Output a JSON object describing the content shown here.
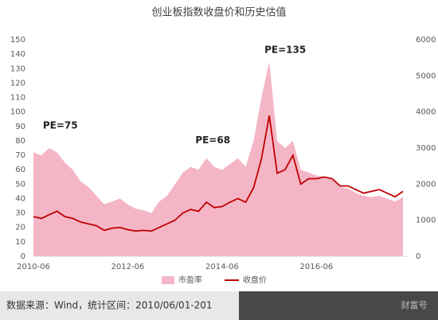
{
  "chart_data": {
    "type": "area-line",
    "title": "创业板指数收盘价和历史估值",
    "categories": [
      "2010-06",
      null,
      null,
      null,
      null,
      null,
      null,
      null,
      null,
      null,
      null,
      null,
      "2012-06",
      null,
      null,
      null,
      null,
      null,
      null,
      null,
      null,
      null,
      null,
      null,
      "2014-06",
      null,
      null,
      null,
      null,
      null,
      null,
      null,
      null,
      null,
      null,
      null,
      "2016-06",
      null,
      null,
      null,
      null,
      null,
      null,
      null,
      null,
      null,
      null,
      null
    ],
    "series": [
      {
        "name": "市盈率",
        "color": "#f4b6c6",
        "kind": "area",
        "values": [
          72,
          70,
          75,
          72,
          65,
          60,
          52,
          48,
          42,
          36,
          38,
          40,
          36,
          33,
          32,
          30,
          38,
          42,
          50,
          58,
          62,
          60,
          68,
          62,
          60,
          64,
          68,
          62,
          80,
          110,
          135,
          80,
          75,
          80,
          60,
          58,
          56,
          55,
          53,
          48,
          47,
          44,
          42,
          41,
          42,
          40,
          38,
          41
        ]
      },
      {
        "name": "收盘价",
        "color": "#c00000",
        "kind": "line",
        "axis": "y2",
        "values": [
          1100,
          1050,
          1150,
          1250,
          1100,
          1050,
          950,
          900,
          850,
          720,
          780,
          800,
          740,
          700,
          720,
          700,
          800,
          900,
          1000,
          1200,
          1300,
          1250,
          1500,
          1350,
          1380,
          1500,
          1600,
          1500,
          1900,
          2700,
          3900,
          2300,
          2400,
          2800,
          2000,
          2150,
          2150,
          2200,
          2150,
          1950,
          1950,
          1850,
          1750,
          1800,
          1850,
          1750,
          1650,
          1800
        ]
      }
    ],
    "ylim": [
      0,
      150
    ],
    "yticks": [
      0,
      10,
      20,
      30,
      40,
      50,
      60,
      70,
      80,
      90,
      100,
      110,
      120,
      130,
      140,
      150
    ],
    "y2lim": [
      0,
      6000
    ],
    "y2ticks": [
      0,
      1000,
      2000,
      3000,
      4000,
      5000,
      6000
    ],
    "annotations": [
      {
        "text": "PE=75",
        "index": 2
      },
      {
        "text": "PE=68",
        "index": 22
      },
      {
        "text": "PE=135",
        "index": 30
      }
    ],
    "legend": "bottom",
    "source": "数据来源：Wind，统计区间：2010/06/01-201",
    "watermark": "财富号"
  }
}
